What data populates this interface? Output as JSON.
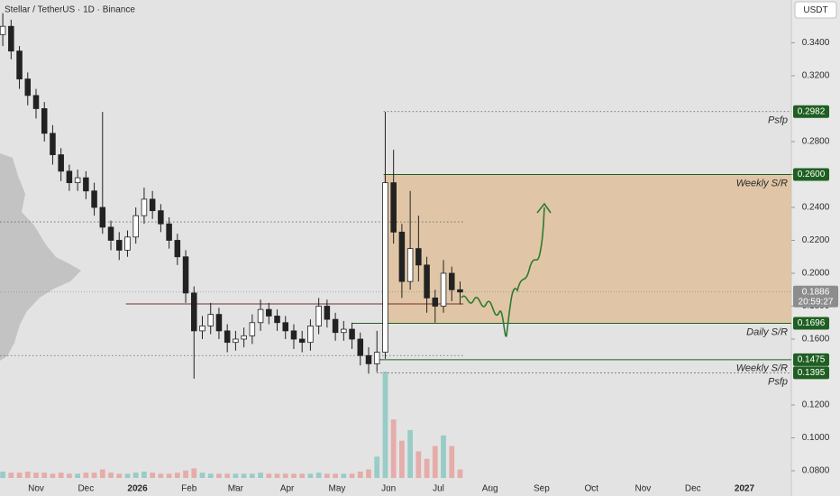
{
  "chart_data": {
    "type": "candlestick",
    "title": "Stellar / TetherUS · 1D · Binance",
    "currency": "USDT",
    "x": [
      -20,
      -15,
      -10,
      -5,
      0,
      5,
      10,
      15,
      20,
      25,
      30,
      35,
      40,
      45,
      50,
      55,
      60,
      65,
      70,
      75,
      80,
      85,
      90,
      95,
      100,
      105,
      110,
      115,
      120,
      125,
      130,
      135,
      140,
      145,
      150,
      155,
      160,
      165,
      170,
      175,
      180,
      185,
      190,
      195,
      200,
      205,
      210,
      215,
      220,
      225,
      230,
      235,
      240,
      245,
      250,
      255
    ],
    "open": [
      0.345,
      0.35,
      0.335,
      0.318,
      0.308,
      0.3,
      0.285,
      0.272,
      0.262,
      0.255,
      0.258,
      0.25,
      0.24,
      0.228,
      0.22,
      0.214,
      0.222,
      0.235,
      0.245,
      0.238,
      0.23,
      0.22,
      0.21,
      0.188,
      0.165,
      0.168,
      0.175,
      0.165,
      0.158,
      0.16,
      0.162,
      0.17,
      0.178,
      0.174,
      0.17,
      0.165,
      0.16,
      0.158,
      0.168,
      0.18,
      0.172,
      0.164,
      0.166,
      0.16,
      0.15,
      0.145,
      0.152,
      0.255,
      0.225,
      0.195,
      0.215,
      0.205,
      0.185,
      0.18,
      0.2,
      0.19
    ],
    "high": [
      0.358,
      0.354,
      0.338,
      0.322,
      0.312,
      0.304,
      0.29,
      0.276,
      0.266,
      0.263,
      0.262,
      0.255,
      0.298,
      0.232,
      0.225,
      0.226,
      0.24,
      0.252,
      0.25,
      0.242,
      0.234,
      0.224,
      0.214,
      0.192,
      0.174,
      0.182,
      0.179,
      0.169,
      0.165,
      0.167,
      0.175,
      0.184,
      0.182,
      0.178,
      0.174,
      0.169,
      0.165,
      0.172,
      0.185,
      0.184,
      0.176,
      0.171,
      0.17,
      0.164,
      0.155,
      0.165,
      0.298,
      0.275,
      0.23,
      0.25,
      0.235,
      0.21,
      0.19,
      0.208,
      0.204,
      0.195
    ],
    "low": [
      0.338,
      0.33,
      0.312,
      0.302,
      0.294,
      0.28,
      0.266,
      0.256,
      0.25,
      0.25,
      0.245,
      0.235,
      0.224,
      0.214,
      0.208,
      0.21,
      0.218,
      0.23,
      0.233,
      0.225,
      0.215,
      0.205,
      0.182,
      0.136,
      0.16,
      0.163,
      0.16,
      0.152,
      0.153,
      0.155,
      0.157,
      0.165,
      0.169,
      0.165,
      0.16,
      0.154,
      0.152,
      0.153,
      0.163,
      0.167,
      0.159,
      0.159,
      0.154,
      0.144,
      0.139,
      0.14,
      0.148,
      0.218,
      0.185,
      0.19,
      0.195,
      0.176,
      0.17,
      0.176,
      0.183,
      0.181
    ],
    "close": [
      0.35,
      0.335,
      0.318,
      0.308,
      0.3,
      0.285,
      0.272,
      0.262,
      0.255,
      0.258,
      0.25,
      0.24,
      0.228,
      0.22,
      0.214,
      0.222,
      0.235,
      0.245,
      0.238,
      0.23,
      0.22,
      0.21,
      0.188,
      0.165,
      0.168,
      0.175,
      0.165,
      0.158,
      0.16,
      0.162,
      0.17,
      0.178,
      0.174,
      0.17,
      0.165,
      0.16,
      0.158,
      0.168,
      0.18,
      0.172,
      0.164,
      0.166,
      0.16,
      0.15,
      0.145,
      0.152,
      0.255,
      0.225,
      0.195,
      0.215,
      0.205,
      0.185,
      0.18,
      0.2,
      0.19,
      0.1886
    ],
    "volume": [
      6,
      5,
      5,
      6,
      5,
      5,
      4,
      5,
      4,
      4,
      5,
      5,
      8,
      5,
      4,
      4,
      5,
      6,
      5,
      4,
      4,
      5,
      7,
      9,
      5,
      4,
      4,
      4,
      4,
      4,
      4,
      5,
      4,
      4,
      4,
      4,
      4,
      4,
      5,
      4,
      4,
      4,
      4,
      6,
      8,
      20,
      100,
      55,
      35,
      45,
      25,
      18,
      30,
      40,
      30,
      8
    ],
    "xlim": [
      -21.68,
      454.2
    ],
    "xticks": [
      {
        "value": 0,
        "label": "Nov"
      },
      {
        "value": 30,
        "label": "Dec"
      },
      {
        "value": 61,
        "label": "2026"
      },
      {
        "value": 92,
        "label": "Feb"
      },
      {
        "value": 120,
        "label": "Mar"
      },
      {
        "value": 151,
        "label": "Apr"
      },
      {
        "value": 181,
        "label": "May"
      },
      {
        "value": 212,
        "label": "Jun"
      },
      {
        "value": 242,
        "label": "Jul"
      },
      {
        "value": 273,
        "label": "Aug"
      },
      {
        "value": 304,
        "label": "Sep"
      },
      {
        "value": 334,
        "label": "Oct"
      },
      {
        "value": 365,
        "label": "Nov"
      },
      {
        "value": 395,
        "label": "Dec"
      },
      {
        "value": 426,
        "label": "2027"
      }
    ],
    "ylim": [
      0.0718,
      0.366
    ],
    "yticks": [
      {
        "value": 0.08,
        "label": "0.0800"
      },
      {
        "value": 0.1,
        "label": "0.1000"
      },
      {
        "value": 0.12,
        "label": "0.1200"
      },
      {
        "value": 0.16,
        "label": "0.1600"
      },
      {
        "value": 0.18,
        "label": "0.1800"
      },
      {
        "value": 0.2,
        "label": "0.2000"
      },
      {
        "value": 0.22,
        "label": "0.2200"
      },
      {
        "value": 0.24,
        "label": "0.2400"
      },
      {
        "value": 0.26,
        "label": "0.2600"
      },
      {
        "value": 0.28,
        "label": "0.2800"
      },
      {
        "value": 0.32,
        "label": "0.3200"
      },
      {
        "value": 0.34,
        "label": "0.3400"
      }
    ],
    "zone": {
      "low": 0.1696,
      "high": 0.26,
      "x_start": 209,
      "color": "#dfc19b"
    },
    "levels": [
      {
        "value": 0.2982,
        "label": "0.2982",
        "text": "Psfp",
        "style": "dotted",
        "x_start": 209
      },
      {
        "value": 0.26,
        "label": "0.2600",
        "text": "Weekly S/R",
        "style": "solid",
        "x_start": 209
      },
      {
        "value": 0.1696,
        "label": "0.1696",
        "text": "Daily S/R",
        "style": "solid",
        "x_start": 190
      },
      {
        "value": 0.1475,
        "label": "0.1475",
        "text": "Weekly S/R",
        "style": "solid",
        "x_start": 205
      },
      {
        "value": 0.1395,
        "label": "0.1395",
        "text": "Psfp",
        "style": "dotted",
        "x_start": 205
      }
    ],
    "lines": [
      {
        "value": 0.2312,
        "x_start": -21.68,
        "x_end": 257,
        "style": "dotted"
      },
      {
        "value": 0.15,
        "x_start": -21.68,
        "x_end": 257,
        "style": "dotted"
      },
      {
        "value": 0.1814,
        "x_start": 54,
        "x_end": 257,
        "style": "solid"
      }
    ],
    "last_price": {
      "value": 0.1886,
      "label": "0.1886",
      "countdown": "20:59:27"
    },
    "level_color": "#1f5f22",
    "up_color": "#ffffff",
    "down_color": "#222222"
  }
}
